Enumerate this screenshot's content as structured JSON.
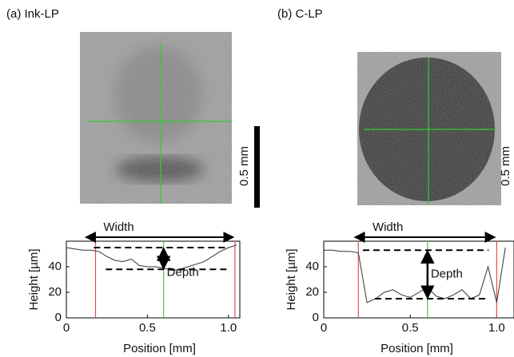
{
  "chart_data": [
    {
      "type": "line",
      "title": "(a) Ink-LP",
      "xlabel": "Position [mm]",
      "ylabel": "Height [µm]",
      "x": [
        0,
        0.05,
        0.1,
        0.15,
        0.2,
        0.25,
        0.3,
        0.35,
        0.4,
        0.45,
        0.5,
        0.55,
        0.6,
        0.65,
        0.7,
        0.75,
        0.8,
        0.85,
        0.9,
        0.95,
        1.0,
        1.05
      ],
      "values": [
        55,
        54,
        53,
        53,
        52,
        48,
        45,
        44,
        46,
        41,
        40,
        40,
        39,
        37,
        38,
        40,
        42,
        44,
        48,
        52,
        55,
        57
      ],
      "color": "#333333",
      "xlim": [
        0,
        1.07
      ],
      "ylim": [
        0,
        60
      ],
      "xticks": [
        0,
        0.5,
        {
          "value": 1,
          "label": "1.0"
        }
      ],
      "yticks": [
        0,
        20,
        40
      ],
      "vlines": [
        {
          "x": 0.18,
          "color": "#e05050"
        },
        {
          "x": 0.6,
          "color": "#50c050"
        },
        {
          "x": 1.04,
          "color": "#e05050"
        }
      ],
      "levels": [
        55,
        38
      ],
      "width_label": "Width",
      "width_span": [
        0.12,
        1.03
      ],
      "depth_label": "Depth",
      "scale_label": "0.5 mm"
    },
    {
      "type": "line",
      "title": "(b) C-LP",
      "xlabel": "Position [mm]",
      "ylabel": "Height [µm]",
      "x": [
        0,
        0.05,
        0.1,
        0.15,
        0.2,
        0.25,
        0.3,
        0.35,
        0.4,
        0.45,
        0.5,
        0.55,
        0.6,
        0.65,
        0.7,
        0.75,
        0.8,
        0.85,
        0.9,
        0.95,
        1.0,
        1.05
      ],
      "values": [
        53,
        53,
        52,
        52,
        51,
        12,
        15,
        20,
        22,
        18,
        16,
        20,
        24,
        17,
        15,
        18,
        22,
        15,
        18,
        40,
        12,
        55
      ],
      "color": "#333333",
      "xlim": [
        0,
        1.1
      ],
      "ylim": [
        0,
        60
      ],
      "xticks": [
        0,
        0.5,
        {
          "value": 1,
          "label": "1.0"
        }
      ],
      "yticks": [
        0,
        20,
        40
      ],
      "vlines": [
        {
          "x": 0.2,
          "color": "#e05050"
        },
        {
          "x": 0.6,
          "color": "#50c050"
        },
        {
          "x": 1.0,
          "color": "#e05050"
        }
      ],
      "levels": [
        53,
        15
      ],
      "width_label": "Width",
      "width_span": [
        0.18,
        0.99
      ],
      "depth_label": "Depth",
      "scale_label": "0.5 mm"
    }
  ]
}
